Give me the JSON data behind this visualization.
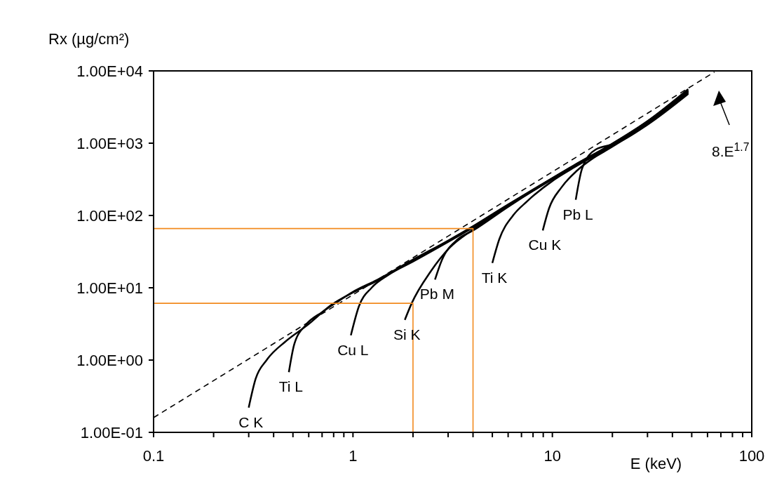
{
  "chart_data": {
    "type": "line",
    "ylabel": "Rx  (µg/cm²)",
    "xlabel": "E   (keV)",
    "log": "xy",
    "marker": "none",
    "xlim": [
      0.1,
      100
    ],
    "ylim": [
      0.1,
      10000
    ],
    "xticks": [
      0.1,
      {
        "value": 0.2,
        "label": null
      },
      {
        "value": 0.3,
        "label": null
      },
      {
        "value": 0.4,
        "label": null
      },
      {
        "value": 0.5,
        "label": null
      },
      {
        "value": 0.6,
        "label": null
      },
      {
        "value": 0.7,
        "label": null
      },
      {
        "value": 0.8,
        "label": null
      },
      {
        "value": 0.9,
        "label": null
      },
      1,
      {
        "value": 2,
        "label": null
      },
      {
        "value": 3,
        "label": null
      },
      {
        "value": 4,
        "label": null
      },
      {
        "value": 5,
        "label": null
      },
      {
        "value": 6,
        "label": null
      },
      {
        "value": 7,
        "label": null
      },
      {
        "value": 8,
        "label": null
      },
      {
        "value": 9,
        "label": null
      },
      10,
      {
        "value": 20,
        "label": null
      },
      {
        "value": 30,
        "label": null
      },
      {
        "value": 40,
        "label": null
      },
      {
        "value": 50,
        "label": null
      },
      {
        "value": 60,
        "label": null
      },
      {
        "value": 70,
        "label": null
      },
      {
        "value": 80,
        "label": null
      },
      {
        "value": 90,
        "label": null
      },
      100
    ],
    "yticks": [
      {
        "value": 0.1,
        "label": "1.00E-01"
      },
      {
        "value": 1,
        "label": "1.00E+00"
      },
      {
        "value": 10,
        "label": "1.00E+01"
      },
      {
        "value": 100,
        "label": "1.00E+02"
      },
      {
        "value": 1000,
        "label": "1.00E+03"
      },
      {
        "value": 10000,
        "label": "1.00E+04"
      }
    ],
    "annotations": [
      "8.E$^{1.7}$"
    ],
    "series": [
      {
        "name": "C K",
        "color": "#000000",
        "x": [
          0.3,
          0.325,
          0.369,
          0.458,
          0.596,
          0.78,
          1.0,
          1.32,
          2,
          3,
          4,
          6,
          8.7,
          13,
          19.4,
          30,
          48
        ],
        "values": [
          0.22,
          0.55,
          1.0,
          1.8,
          3.1,
          5.8,
          8.6,
          12.5,
          24,
          44,
          70,
          140,
          260,
          500,
          930,
          2000,
          5400
        ]
      },
      {
        "name": "Ti L",
        "color": "#000000",
        "x": [
          0.477,
          0.508,
          0.58,
          0.7,
          0.85,
          1.0,
          1.32,
          2,
          3,
          4,
          6,
          8.7,
          13,
          19.4,
          30,
          48
        ],
        "values": [
          0.68,
          1.67,
          3.06,
          4.6,
          6.6,
          8.8,
          12.8,
          24.5,
          45,
          71,
          142,
          262,
          505,
          940,
          2020,
          5600
        ]
      },
      {
        "name": "Cu L",
        "color": "#000000",
        "x": [
          0.976,
          1.07,
          1.24,
          1.5,
          2,
          3,
          4,
          6,
          8.7,
          13,
          19.4,
          30,
          48
        ],
        "values": [
          2.2,
          5.5,
          10,
          15,
          23,
          43,
          68,
          138,
          258,
          495,
          920,
          1980,
          5300
        ]
      },
      {
        "name": "Si K",
        "color": "#000000",
        "x": [
          1.82,
          1.97,
          2.45,
          3.03,
          4,
          6,
          8.7,
          13,
          19.4,
          30,
          48
        ],
        "values": [
          3.6,
          6.1,
          16.7,
          35,
          64,
          135,
          255,
          490,
          910,
          1960,
          5200
        ]
      },
      {
        "name": "Pb M",
        "color": "#000000",
        "x": [
          2.58,
          2.79,
          3.36,
          4,
          6,
          8.7,
          13,
          19.4,
          30,
          48
        ],
        "values": [
          13,
          24,
          47,
          62,
          132,
          252,
          485,
          900,
          1940,
          5100
        ]
      },
      {
        "name": "Ti K",
        "color": "#000000",
        "x": [
          5.0,
          5.42,
          6.35,
          7.45,
          10,
          13,
          19.4,
          30,
          48
        ],
        "values": [
          22,
          47,
          100,
          156,
          300,
          470,
          880,
          1900,
          5000
        ]
      },
      {
        "name": "Cu K",
        "color": "#000000",
        "x": [
          8.95,
          9.62,
          11.1,
          13.3,
          16,
          19.4,
          30,
          48
        ],
        "values": [
          62,
          125,
          244,
          418,
          620,
          850,
          1850,
          4900
        ]
      },
      {
        "name": "Pb L",
        "color": "#000000",
        "x": [
          13.1,
          14.1,
          16.5,
          21,
          30,
          48
        ],
        "values": [
          165,
          447,
          818,
          1000,
          1800,
          4800
        ]
      },
      {
        "color": "#000000",
        "line_style": "dashed",
        "x": [
          0.1,
          65
        ],
        "values": [
          0.16,
          9650
        ]
      },
      {
        "color": "#f28a1e",
        "x": [
          0.1,
          2,
          2
        ],
        "values": [
          6.1,
          6.1,
          0.1
        ]
      },
      {
        "color": "#f28a1e",
        "x": [
          0.1,
          4,
          4
        ],
        "values": [
          66,
          66,
          0.1
        ]
      }
    ]
  }
}
